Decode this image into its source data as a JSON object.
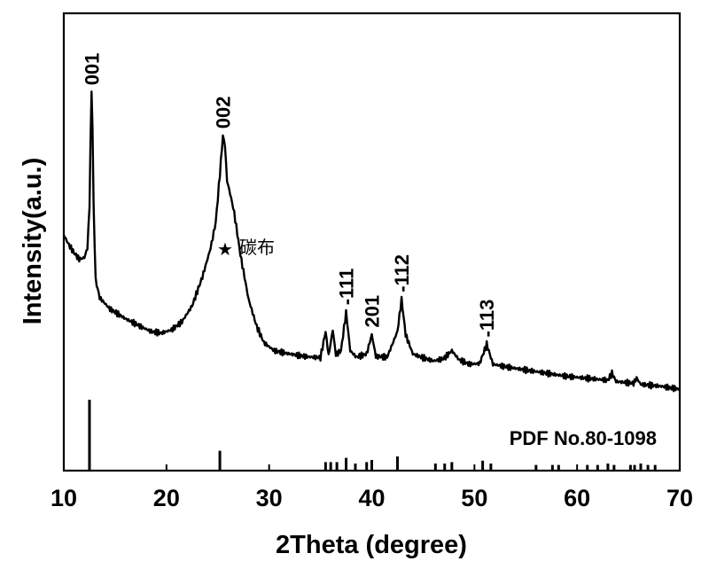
{
  "chart_data": {
    "type": "line",
    "xlabel": "2Theta (degree)",
    "ylabel": "Intensity(a.u.)",
    "xlim": [
      10,
      70
    ],
    "x_ticks": [
      "10",
      "20",
      "30",
      "40",
      "50",
      "60",
      "70"
    ],
    "grid": false,
    "line_color": "#000000",
    "pattern": [
      [
        10.0,
        0.51
      ],
      [
        10.5,
        0.48
      ],
      [
        11.0,
        0.455
      ],
      [
        11.5,
        0.435
      ],
      [
        12.0,
        0.44
      ],
      [
        12.3,
        0.47
      ],
      [
        12.5,
        0.6
      ],
      [
        12.6,
        0.8
      ],
      [
        12.7,
        0.955
      ],
      [
        12.8,
        0.85
      ],
      [
        12.9,
        0.6
      ],
      [
        13.1,
        0.37
      ],
      [
        13.5,
        0.315
      ],
      [
        14.5,
        0.28
      ],
      [
        16.0,
        0.25
      ],
      [
        17.5,
        0.225
      ],
      [
        18.5,
        0.21
      ],
      [
        19.5,
        0.205
      ],
      [
        20.5,
        0.215
      ],
      [
        21.5,
        0.24
      ],
      [
        22.5,
        0.29
      ],
      [
        23.5,
        0.38
      ],
      [
        24.3,
        0.47
      ],
      [
        24.8,
        0.55
      ],
      [
        25.2,
        0.7
      ],
      [
        25.5,
        0.82
      ],
      [
        25.7,
        0.79
      ],
      [
        25.9,
        0.68
      ],
      [
        26.2,
        0.64
      ],
      [
        26.6,
        0.58
      ],
      [
        27.2,
        0.45
      ],
      [
        28.0,
        0.31
      ],
      [
        28.8,
        0.225
      ],
      [
        29.5,
        0.175
      ],
      [
        30.5,
        0.15
      ],
      [
        32.0,
        0.14
      ],
      [
        33.5,
        0.132
      ],
      [
        35.0,
        0.128
      ],
      [
        35.5,
        0.21
      ],
      [
        35.8,
        0.135
      ],
      [
        36.2,
        0.215
      ],
      [
        36.5,
        0.138
      ],
      [
        37.0,
        0.15
      ],
      [
        37.5,
        0.27
      ],
      [
        37.9,
        0.15
      ],
      [
        38.5,
        0.13
      ],
      [
        39.5,
        0.14
      ],
      [
        40.0,
        0.2
      ],
      [
        40.4,
        0.132
      ],
      [
        41.5,
        0.13
      ],
      [
        42.5,
        0.21
      ],
      [
        42.9,
        0.31
      ],
      [
        43.3,
        0.2
      ],
      [
        44.0,
        0.14
      ],
      [
        45.0,
        0.128
      ],
      [
        46.0,
        0.118
      ],
      [
        47.0,
        0.125
      ],
      [
        47.8,
        0.15
      ],
      [
        48.5,
        0.122
      ],
      [
        49.5,
        0.108
      ],
      [
        50.5,
        0.11
      ],
      [
        51.2,
        0.17
      ],
      [
        51.8,
        0.108
      ],
      [
        53.0,
        0.1
      ],
      [
        55.0,
        0.09
      ],
      [
        57.0,
        0.08
      ],
      [
        59.0,
        0.07
      ],
      [
        61.0,
        0.064
      ],
      [
        63.0,
        0.058
      ],
      [
        63.4,
        0.08
      ],
      [
        63.8,
        0.054
      ],
      [
        65.5,
        0.048
      ],
      [
        65.8,
        0.065
      ],
      [
        66.2,
        0.045
      ],
      [
        68.0,
        0.04
      ],
      [
        70.0,
        0.03
      ]
    ],
    "peak_labels": [
      {
        "text": "001",
        "x": 12.7
      },
      {
        "text": "002",
        "x": 25.5
      },
      {
        "text": "-111",
        "x": 37.5
      },
      {
        "text": "201",
        "x": 40.0
      },
      {
        "text": "-112",
        "x": 42.9
      },
      {
        "text": "-113",
        "x": 51.2
      }
    ],
    "annotation": {
      "text": "碳布",
      "x": 25.8
    },
    "reference": {
      "label": "PDF No.80-1098",
      "positions": [
        12.5,
        25.2,
        35.5,
        36.0,
        36.6,
        37.5,
        38.4,
        39.5,
        40.0,
        42.5,
        46.2,
        47.1,
        47.8,
        50.8,
        51.6,
        56.0,
        57.6,
        58.2,
        61.0,
        62.0,
        63.0,
        63.6,
        65.2,
        65.6,
        66.2,
        66.9,
        67.6
      ],
      "heights": [
        1.0,
        0.28,
        0.12,
        0.12,
        0.12,
        0.18,
        0.1,
        0.12,
        0.15,
        0.2,
        0.1,
        0.1,
        0.12,
        0.14,
        0.1,
        0.08,
        0.08,
        0.08,
        0.08,
        0.08,
        0.1,
        0.08,
        0.08,
        0.08,
        0.1,
        0.08,
        0.08
      ]
    }
  }
}
